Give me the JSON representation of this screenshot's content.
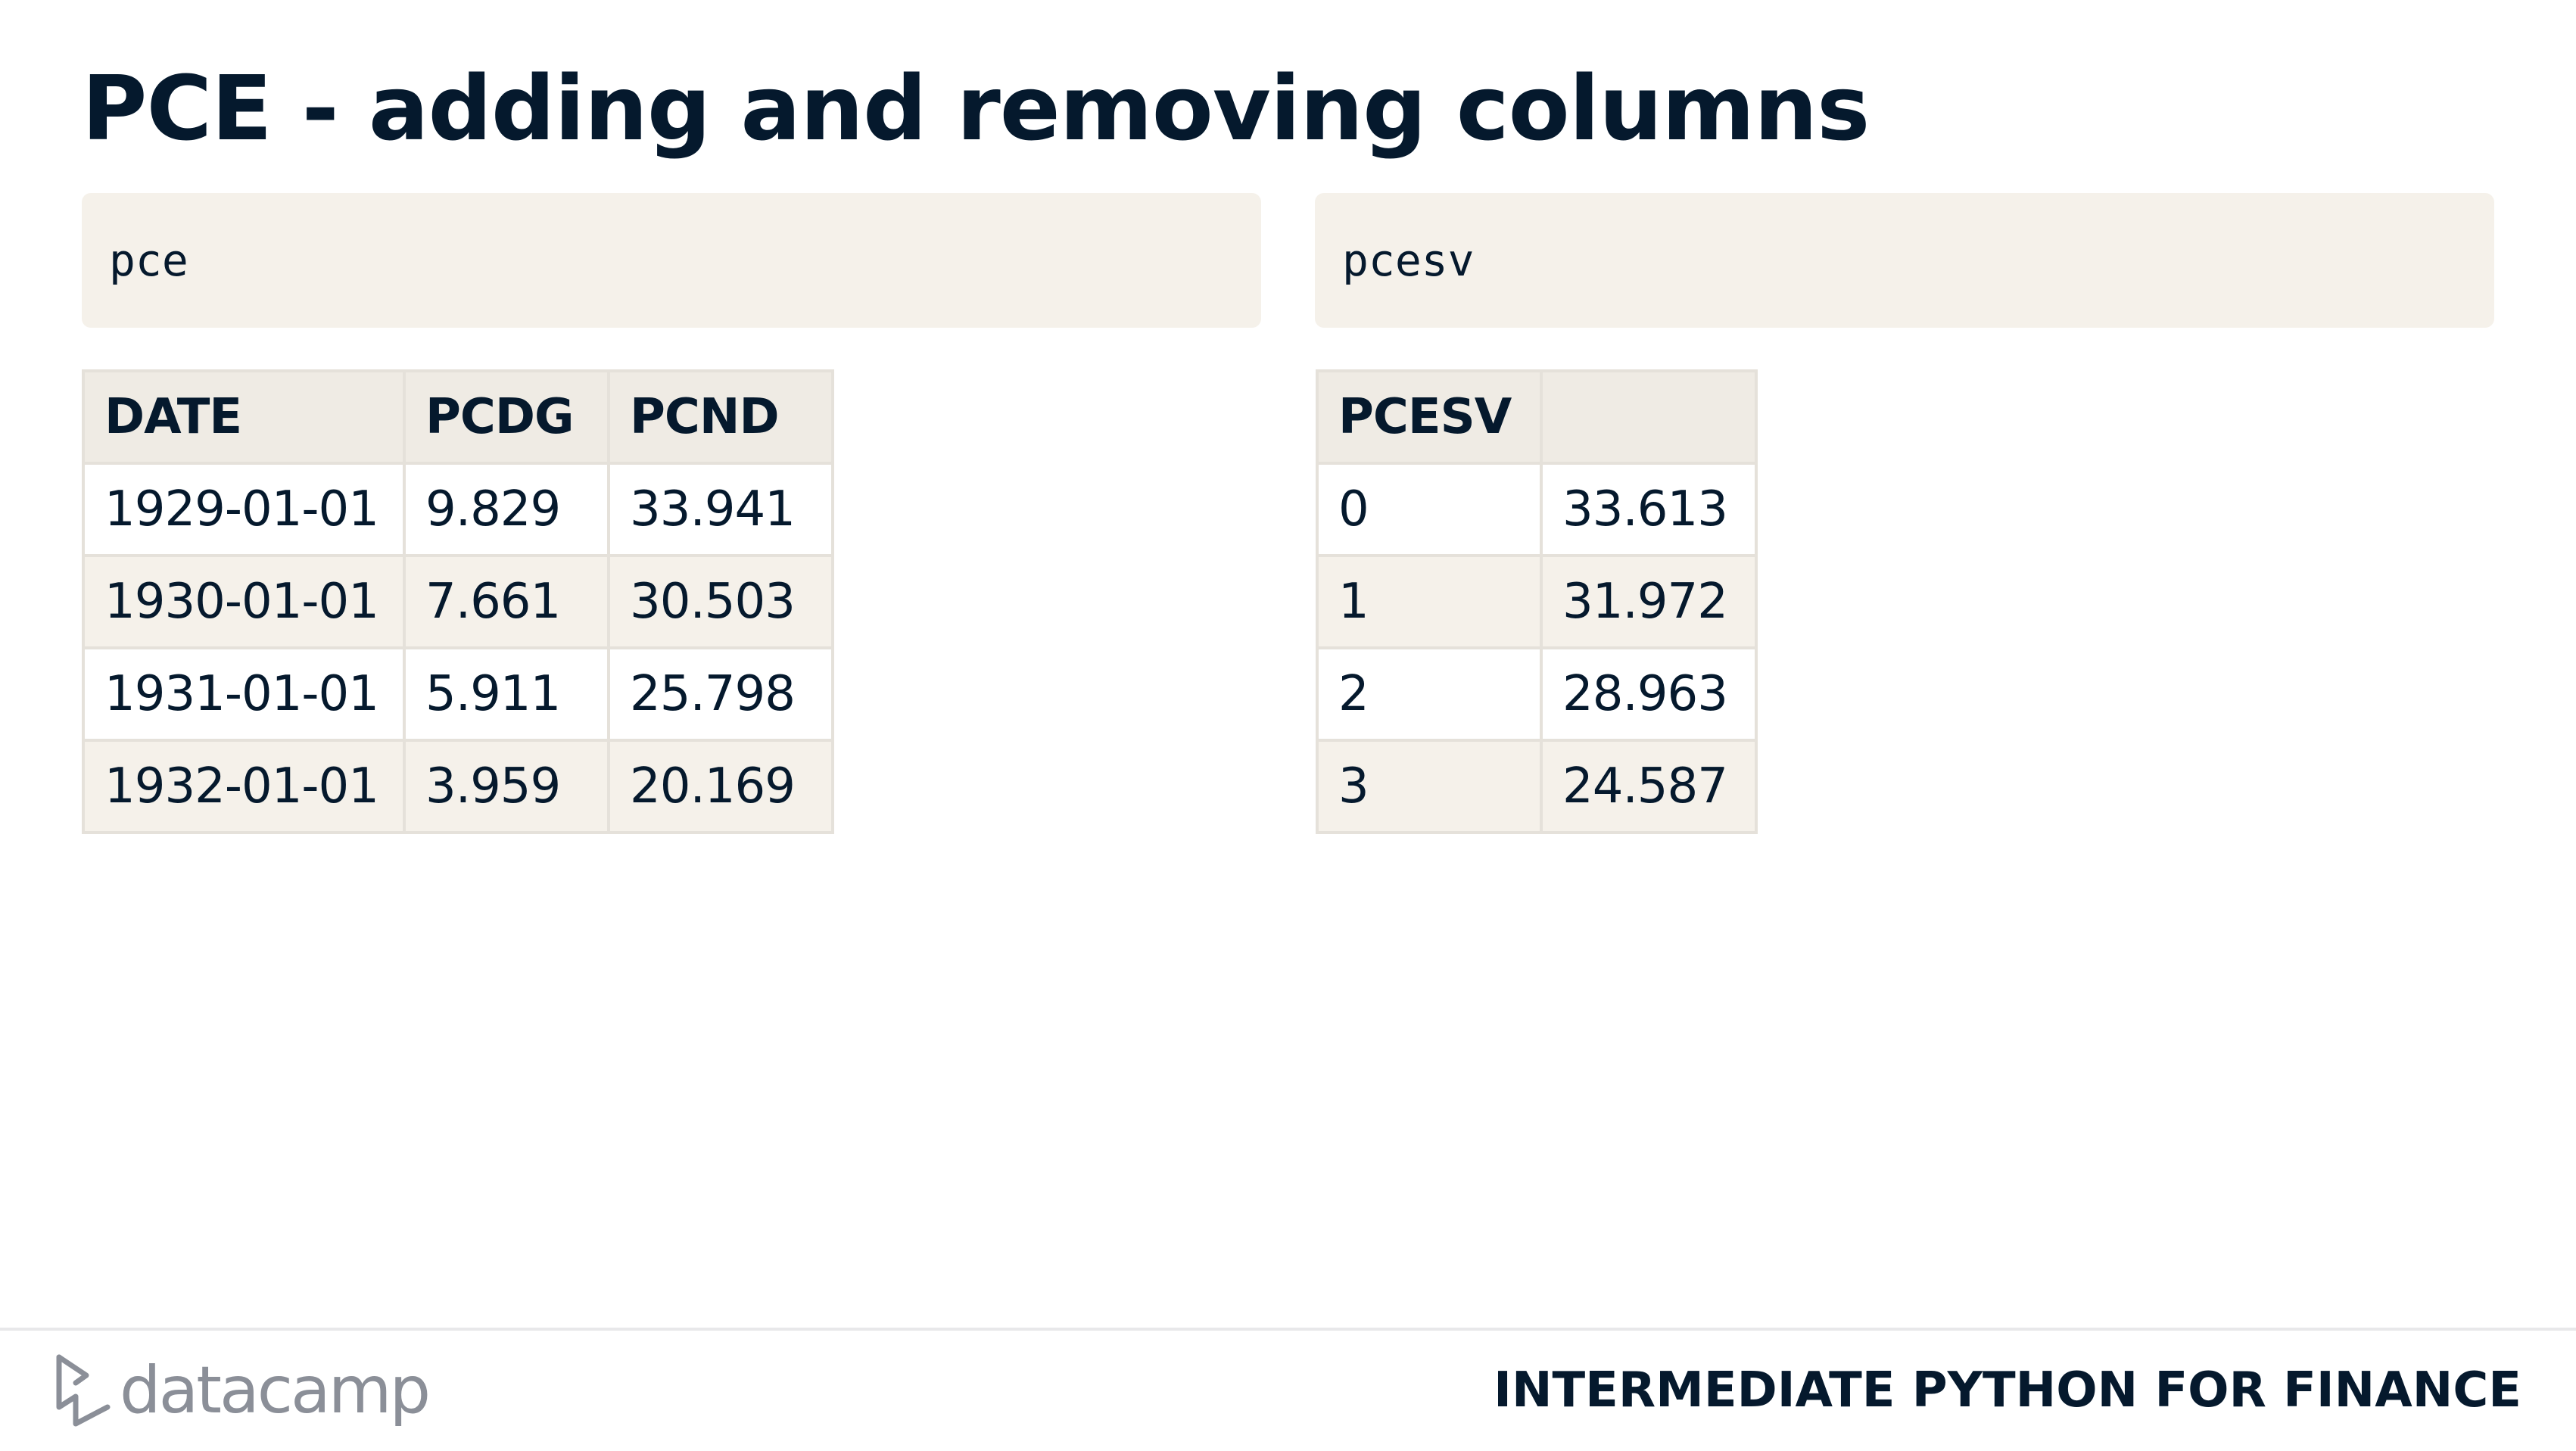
{
  "slide": {
    "title": "PCE - adding and removing columns"
  },
  "left": {
    "code": "pce",
    "table": {
      "headers": [
        "DATE",
        "PCDG",
        "PCND"
      ],
      "rows": [
        [
          "1929-01-01",
          "9.829",
          "33.941"
        ],
        [
          "1930-01-01",
          "7.661",
          "30.503"
        ],
        [
          "1931-01-01",
          "5.911",
          "25.798"
        ],
        [
          "1932-01-01",
          "3.959",
          "20.169"
        ]
      ]
    }
  },
  "right": {
    "code": "pcesv",
    "table": {
      "headers": [
        "PCESV",
        ""
      ],
      "rows": [
        [
          "0",
          "33.613"
        ],
        [
          "1",
          "31.972"
        ],
        [
          "2",
          "28.963"
        ],
        [
          "3",
          "24.587"
        ]
      ]
    }
  },
  "footer": {
    "logo_text": "datacamp",
    "logo_icon": "datacamp-logo-icon",
    "course_title": "INTERMEDIATE PYTHON FOR FINANCE"
  },
  "colors": {
    "text": "#05192d",
    "code_background": "#f5f1ea",
    "header_background": "#efebe4",
    "logo_gray": "#8b8f98"
  }
}
